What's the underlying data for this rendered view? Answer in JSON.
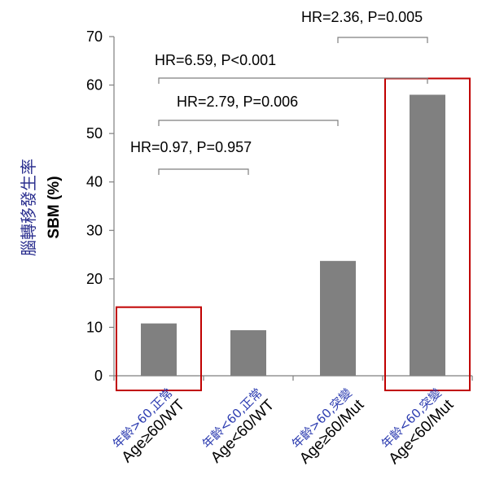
{
  "chart_data": {
    "type": "bar",
    "ylabel": "SBM (%)",
    "ylabel_secondary": "腦轉移發生率",
    "ylim": [
      0,
      70
    ],
    "yticks": [
      "0",
      "10",
      "20",
      "30",
      "40",
      "50",
      "60",
      "70"
    ],
    "categories": [
      {
        "label_cn": "年齡>60,正常",
        "label_en": "Age≥60/WT"
      },
      {
        "label_cn": "年齡<60,正常",
        "label_en": "Age<60/WT"
      },
      {
        "label_cn": "年齡>60,突變",
        "label_en": "Age≥60/Mut"
      },
      {
        "label_cn": "年齡<60,突變",
        "label_en": "Age<60/Mut"
      }
    ],
    "values": [
      10.8,
      9.4,
      23.7,
      58.0
    ],
    "bar_color": "#808080",
    "highlight_color": "#c00000",
    "highlighted_categories": [
      0,
      3
    ],
    "annotations": [
      {
        "text": "HR=0.97, P=0.957",
        "from": 0,
        "to": 1
      },
      {
        "text": "HR=2.79, P=0.006",
        "from": 0,
        "to": 2
      },
      {
        "text": "HR=6.59, P<0.001",
        "from": 0,
        "to": 3
      },
      {
        "text": "HR=2.36, P=0.005",
        "from": 2,
        "to": 3
      }
    ]
  }
}
